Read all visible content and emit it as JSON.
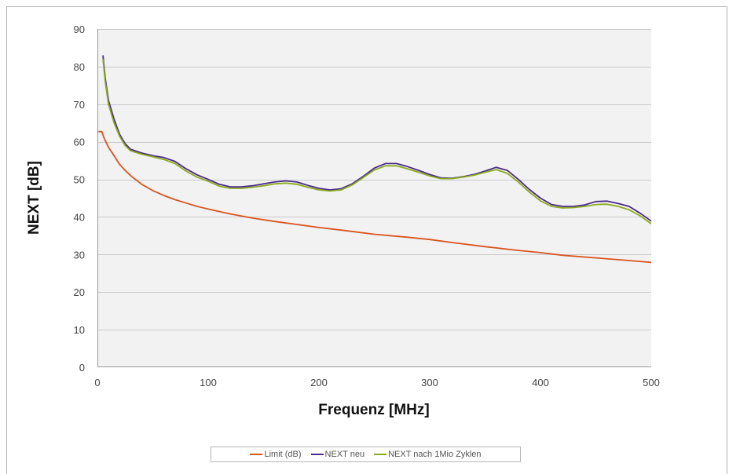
{
  "chart_data": {
    "type": "line",
    "xlabel": "Frequenz [MHz]",
    "ylabel": "NEXT [dB]",
    "xlim": [
      0,
      500
    ],
    "ylim": [
      0,
      90
    ],
    "x_ticks": [
      0,
      100,
      200,
      300,
      400,
      500
    ],
    "y_ticks": [
      0,
      10,
      20,
      30,
      40,
      50,
      60,
      70,
      80,
      90
    ],
    "grid": "horizontal",
    "legend_position": "bottom",
    "series": [
      {
        "name": "Limit (dB)",
        "color": "#d9541e",
        "points": [
          [
            1,
            62.7
          ],
          [
            4,
            62.7
          ],
          [
            6,
            61
          ],
          [
            10,
            58.5
          ],
          [
            15,
            56.3
          ],
          [
            20,
            54
          ],
          [
            25,
            52.4
          ],
          [
            30,
            51
          ],
          [
            40,
            48.7
          ],
          [
            50,
            47
          ],
          [
            60,
            45.7
          ],
          [
            70,
            44.6
          ],
          [
            80,
            43.7
          ],
          [
            90,
            42.8
          ],
          [
            100,
            42.1
          ],
          [
            120,
            40.8
          ],
          [
            140,
            39.7
          ],
          [
            160,
            38.8
          ],
          [
            180,
            38
          ],
          [
            200,
            37.2
          ],
          [
            220,
            36.5
          ],
          [
            250,
            35.4
          ],
          [
            280,
            34.6
          ],
          [
            300,
            34.0
          ],
          [
            320,
            33.2
          ],
          [
            350,
            32.1
          ],
          [
            380,
            31.1
          ],
          [
            400,
            30.5
          ],
          [
            420,
            29.8
          ],
          [
            450,
            29.1
          ],
          [
            480,
            28.4
          ],
          [
            500,
            27.9
          ]
        ]
      },
      {
        "name": "NEXT neu",
        "color": "#4a2a8c",
        "points": [
          [
            5,
            83
          ],
          [
            7,
            77
          ],
          [
            10,
            71
          ],
          [
            15,
            66
          ],
          [
            20,
            62
          ],
          [
            25,
            59.5
          ],
          [
            30,
            58
          ],
          [
            40,
            57
          ],
          [
            50,
            56.3
          ],
          [
            60,
            55.8
          ],
          [
            70,
            54.8
          ],
          [
            80,
            52.8
          ],
          [
            90,
            51.2
          ],
          [
            100,
            50
          ],
          [
            110,
            48.7
          ],
          [
            120,
            48
          ],
          [
            130,
            48
          ],
          [
            140,
            48.3
          ],
          [
            150,
            48.8
          ],
          [
            160,
            49.3
          ],
          [
            170,
            49.6
          ],
          [
            180,
            49.3
          ],
          [
            190,
            48.4
          ],
          [
            200,
            47.6
          ],
          [
            210,
            47.2
          ],
          [
            220,
            47.5
          ],
          [
            230,
            48.8
          ],
          [
            240,
            50.8
          ],
          [
            250,
            53
          ],
          [
            260,
            54.2
          ],
          [
            270,
            54.2
          ],
          [
            280,
            53.4
          ],
          [
            290,
            52.4
          ],
          [
            300,
            51.3
          ],
          [
            310,
            50.4
          ],
          [
            320,
            50.3
          ],
          [
            330,
            50.7
          ],
          [
            340,
            51.3
          ],
          [
            350,
            52.2
          ],
          [
            360,
            53.2
          ],
          [
            370,
            52.4
          ],
          [
            380,
            50
          ],
          [
            390,
            47.3
          ],
          [
            400,
            45
          ],
          [
            410,
            43.3
          ],
          [
            420,
            42.8
          ],
          [
            430,
            42.8
          ],
          [
            440,
            43.2
          ],
          [
            450,
            44.1
          ],
          [
            460,
            44.2
          ],
          [
            470,
            43.6
          ],
          [
            480,
            42.8
          ],
          [
            490,
            41
          ],
          [
            500,
            38.9
          ]
        ]
      },
      {
        "name": "NEXT nach 1Mio Zyklen",
        "color": "#8aab1c",
        "points": [
          [
            5,
            82
          ],
          [
            7,
            76
          ],
          [
            10,
            70
          ],
          [
            15,
            65
          ],
          [
            20,
            61.5
          ],
          [
            25,
            59
          ],
          [
            30,
            57.6
          ],
          [
            40,
            56.7
          ],
          [
            50,
            56
          ],
          [
            60,
            55.3
          ],
          [
            70,
            54.2
          ],
          [
            80,
            52.2
          ],
          [
            90,
            50.6
          ],
          [
            100,
            49.5
          ],
          [
            110,
            48.2
          ],
          [
            120,
            47.6
          ],
          [
            130,
            47.6
          ],
          [
            140,
            47.9
          ],
          [
            150,
            48.3
          ],
          [
            160,
            48.8
          ],
          [
            170,
            49
          ],
          [
            180,
            48.7
          ],
          [
            190,
            47.9
          ],
          [
            200,
            47.2
          ],
          [
            210,
            46.9
          ],
          [
            220,
            47.2
          ],
          [
            230,
            48.5
          ],
          [
            240,
            50.5
          ],
          [
            250,
            52.5
          ],
          [
            260,
            53.6
          ],
          [
            270,
            53.6
          ],
          [
            280,
            52.8
          ],
          [
            290,
            51.9
          ],
          [
            300,
            50.9
          ],
          [
            310,
            50.2
          ],
          [
            320,
            50.2
          ],
          [
            330,
            50.6
          ],
          [
            340,
            51.1
          ],
          [
            350,
            51.9
          ],
          [
            360,
            52.6
          ],
          [
            370,
            51.6
          ],
          [
            380,
            49.3
          ],
          [
            390,
            46.6
          ],
          [
            400,
            44.3
          ],
          [
            410,
            42.8
          ],
          [
            420,
            42.4
          ],
          [
            430,
            42.5
          ],
          [
            440,
            42.8
          ],
          [
            450,
            43.3
          ],
          [
            460,
            43.4
          ],
          [
            470,
            42.8
          ],
          [
            480,
            41.9
          ],
          [
            490,
            40.3
          ],
          [
            500,
            38.2
          ]
        ]
      }
    ]
  }
}
